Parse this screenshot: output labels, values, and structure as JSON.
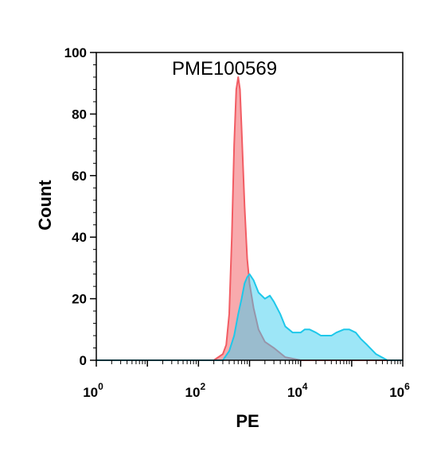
{
  "chart_data": {
    "type": "area",
    "title": "PME100569",
    "xlabel": "PE",
    "ylabel": "Count",
    "x_scale": "log",
    "xlim": [
      1,
      1000000
    ],
    "ylim": [
      0,
      100
    ],
    "y_ticks": [
      "0",
      "20",
      "40",
      "60",
      "80",
      "100"
    ],
    "x_ticks": [
      {
        "base": "10",
        "exp": "0",
        "value": 1
      },
      {
        "base": "10",
        "exp": "2",
        "value": 100
      },
      {
        "base": "10",
        "exp": "4",
        "value": 10000
      },
      {
        "base": "10",
        "exp": "6",
        "value": 1000000
      }
    ],
    "grid": false,
    "series": [
      {
        "color": "#f25c63",
        "fill": "rgba(242,100,105,0.55)",
        "points": [
          [
            1,
            0
          ],
          [
            200,
            0
          ],
          [
            300,
            2
          ],
          [
            350,
            5
          ],
          [
            400,
            15
          ],
          [
            450,
            40
          ],
          [
            500,
            70
          ],
          [
            550,
            88
          ],
          [
            600,
            92
          ],
          [
            650,
            88
          ],
          [
            700,
            75
          ],
          [
            800,
            50
          ],
          [
            900,
            33
          ],
          [
            1000,
            25
          ],
          [
            1200,
            17
          ],
          [
            1500,
            10
          ],
          [
            2000,
            6
          ],
          [
            3000,
            4
          ],
          [
            5000,
            1
          ],
          [
            10000,
            0
          ],
          [
            1000000,
            0
          ]
        ]
      },
      {
        "color": "#1ec8ea",
        "fill": "rgba(60,205,240,0.5)",
        "points": [
          [
            1,
            0
          ],
          [
            300,
            0
          ],
          [
            400,
            3
          ],
          [
            500,
            8
          ],
          [
            600,
            15
          ],
          [
            700,
            20
          ],
          [
            800,
            25
          ],
          [
            900,
            27
          ],
          [
            1000,
            28
          ],
          [
            1200,
            26
          ],
          [
            1500,
            22
          ],
          [
            2000,
            20
          ],
          [
            2500,
            21
          ],
          [
            3000,
            19
          ],
          [
            4000,
            15
          ],
          [
            5000,
            11
          ],
          [
            7000,
            9
          ],
          [
            10000,
            9
          ],
          [
            12000,
            10
          ],
          [
            15000,
            10
          ],
          [
            20000,
            9
          ],
          [
            25000,
            8
          ],
          [
            30000,
            8
          ],
          [
            40000,
            8
          ],
          [
            50000,
            9
          ],
          [
            70000,
            10
          ],
          [
            90000,
            10
          ],
          [
            120000,
            9
          ],
          [
            150000,
            7
          ],
          [
            200000,
            5
          ],
          [
            300000,
            2
          ],
          [
            500000,
            0
          ],
          [
            1000000,
            0
          ]
        ]
      }
    ]
  }
}
